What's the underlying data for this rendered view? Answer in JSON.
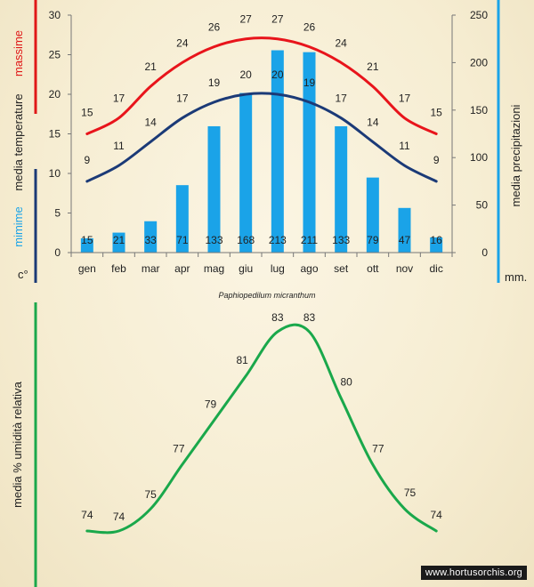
{
  "chart_data": [
    {
      "type": "bar",
      "title": "",
      "subtitle": "Paphiopedilum micranthum",
      "categories": [
        "gen",
        "feb",
        "mar",
        "apr",
        "mag",
        "giu",
        "lug",
        "ago",
        "set",
        "ott",
        "nov",
        "dic"
      ],
      "left_axis": {
        "label_top": "massime",
        "label_mid": "media  temperature",
        "label_bottom": "mimime",
        "unit": "c°",
        "ylim": [
          0,
          30
        ],
        "ticks": [
          0,
          5,
          10,
          15,
          20,
          25,
          30
        ]
      },
      "right_axis": {
        "label": "media  precipitazioni",
        "unit": "mm.",
        "ylim": [
          0,
          250
        ],
        "ticks": [
          0,
          50,
          100,
          150,
          200,
          250
        ]
      },
      "series": [
        {
          "kind": "line",
          "axis": "left",
          "color": "#e8141b",
          "values": [
            15,
            17,
            21,
            24,
            26,
            27,
            27,
            26,
            24,
            21,
            17,
            15
          ]
        },
        {
          "kind": "line",
          "axis": "left",
          "color": "#1b3a77",
          "values": [
            9,
            11,
            14,
            17,
            19,
            20,
            20,
            19,
            17,
            14,
            11,
            9
          ]
        },
        {
          "kind": "bar",
          "axis": "right",
          "color": "#1aa3e8",
          "values": [
            15,
            21,
            33,
            71,
            133,
            168,
            213,
            211,
            133,
            79,
            47,
            16
          ]
        }
      ],
      "colors": {
        "red_axis": "#e01818",
        "navy_axis": "#1b3a77",
        "blue_axis": "#1aa3e8"
      }
    },
    {
      "type": "line",
      "title": "",
      "categories": [
        "gen",
        "feb",
        "mar",
        "apr",
        "mag",
        "giu",
        "lug",
        "ago",
        "set",
        "ott",
        "nov",
        "dic"
      ],
      "ylabel": "media %  umidità relativa",
      "ylim": [
        74,
        83
      ],
      "series": [
        {
          "color": "#1aa84b",
          "values": [
            74,
            74,
            75,
            77,
            79,
            81,
            83,
            83,
            80,
            77,
            75,
            74
          ]
        }
      ]
    }
  ],
  "watermark": "www.hortusorchis.org"
}
